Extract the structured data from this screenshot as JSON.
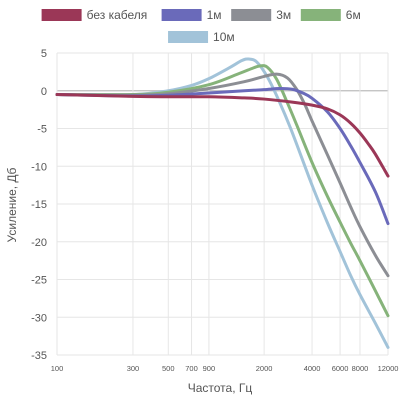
{
  "chart_data": {
    "type": "line",
    "x_scale": "log",
    "xlabel": "Частота, Гц",
    "ylabel": "Усиление, Дб",
    "xlim": [
      100,
      12000
    ],
    "ylim": [
      -35,
      5
    ],
    "grid": true,
    "legend_position": "top",
    "x_ticks": [
      100,
      300,
      500,
      700,
      900,
      2000,
      4000,
      6000,
      8000,
      12000
    ],
    "x_tick_labels": [
      "100",
      "300",
      "500",
      "700",
      "900",
      "2000",
      "4000",
      "6000",
      "8000",
      "12000"
    ],
    "y_ticks": [
      5,
      0,
      -5,
      -10,
      -15,
      -20,
      -25,
      -30,
      -35
    ],
    "y_tick_labels": [
      "5",
      "0",
      "-5",
      "-10",
      "-15",
      "-20",
      "-25",
      "-30",
      "-35"
    ],
    "series": [
      {
        "name": "без кабеля",
        "color": "#9b3757",
        "points": [
          [
            100,
            -0.5
          ],
          [
            300,
            -0.75
          ],
          [
            500,
            -0.8
          ],
          [
            900,
            -0.8
          ],
          [
            1500,
            -0.95
          ],
          [
            2000,
            -1.1
          ],
          [
            3000,
            -1.5
          ],
          [
            4000,
            -1.9
          ],
          [
            5000,
            -2.4
          ],
          [
            6000,
            -3.2
          ],
          [
            7000,
            -4.3
          ],
          [
            8000,
            -5.6
          ],
          [
            9000,
            -7.0
          ],
          [
            10000,
            -8.4
          ],
          [
            12000,
            -11.3
          ]
        ]
      },
      {
        "name": "1м",
        "color": "#6a6aba",
        "points": [
          [
            100,
            -0.5
          ],
          [
            300,
            -0.7
          ],
          [
            500,
            -0.6
          ],
          [
            900,
            -0.3
          ],
          [
            1500,
            0.0
          ],
          [
            2000,
            0.15
          ],
          [
            2500,
            0.3
          ],
          [
            3000,
            0.2
          ],
          [
            3500,
            -0.3
          ],
          [
            4000,
            -1.0
          ],
          [
            5000,
            -2.8
          ],
          [
            6000,
            -5.0
          ],
          [
            7000,
            -7.3
          ],
          [
            8000,
            -9.5
          ],
          [
            10000,
            -13.4
          ],
          [
            12000,
            -17.6
          ]
        ]
      },
      {
        "name": "3м",
        "color": "#8c8e94",
        "points": [
          [
            100,
            -0.5
          ],
          [
            300,
            -0.6
          ],
          [
            500,
            -0.4
          ],
          [
            900,
            0.3
          ],
          [
            1500,
            1.2
          ],
          [
            2000,
            1.9
          ],
          [
            2400,
            2.2
          ],
          [
            2800,
            1.7
          ],
          [
            3200,
            0.2
          ],
          [
            3600,
            -1.8
          ],
          [
            4000,
            -4.0
          ],
          [
            5000,
            -8.5
          ],
          [
            6000,
            -12.2
          ],
          [
            7000,
            -15.4
          ],
          [
            8000,
            -18.0
          ],
          [
            10000,
            -21.8
          ],
          [
            12000,
            -24.5
          ]
        ]
      },
      {
        "name": "6м",
        "color": "#86b37a",
        "points": [
          [
            100,
            -0.5
          ],
          [
            300,
            -0.5
          ],
          [
            500,
            -0.2
          ],
          [
            900,
            0.8
          ],
          [
            1400,
            2.3
          ],
          [
            1700,
            3.0
          ],
          [
            1900,
            3.3
          ],
          [
            2100,
            3.1
          ],
          [
            2400,
            1.5
          ],
          [
            2800,
            -1.6
          ],
          [
            3200,
            -4.5
          ],
          [
            4000,
            -9.5
          ],
          [
            5000,
            -14.0
          ],
          [
            6000,
            -17.4
          ],
          [
            7000,
            -20.2
          ],
          [
            8000,
            -22.5
          ],
          [
            10000,
            -26.5
          ],
          [
            12000,
            -29.8
          ]
        ]
      },
      {
        "name": "10м",
        "color": "#a2c3d9",
        "points": [
          [
            100,
            -0.5
          ],
          [
            300,
            -0.5
          ],
          [
            500,
            0.0
          ],
          [
            700,
            0.7
          ],
          [
            900,
            1.6
          ],
          [
            1200,
            3.0
          ],
          [
            1450,
            4.0
          ],
          [
            1600,
            4.2
          ],
          [
            1800,
            3.8
          ],
          [
            2100,
            1.8
          ],
          [
            2500,
            -1.5
          ],
          [
            3000,
            -5.5
          ],
          [
            4000,
            -12.5
          ],
          [
            5000,
            -17.5
          ],
          [
            6000,
            -21.3
          ],
          [
            7000,
            -24.5
          ],
          [
            8000,
            -27.0
          ],
          [
            10000,
            -30.8
          ],
          [
            12000,
            -34.0
          ]
        ]
      }
    ]
  }
}
